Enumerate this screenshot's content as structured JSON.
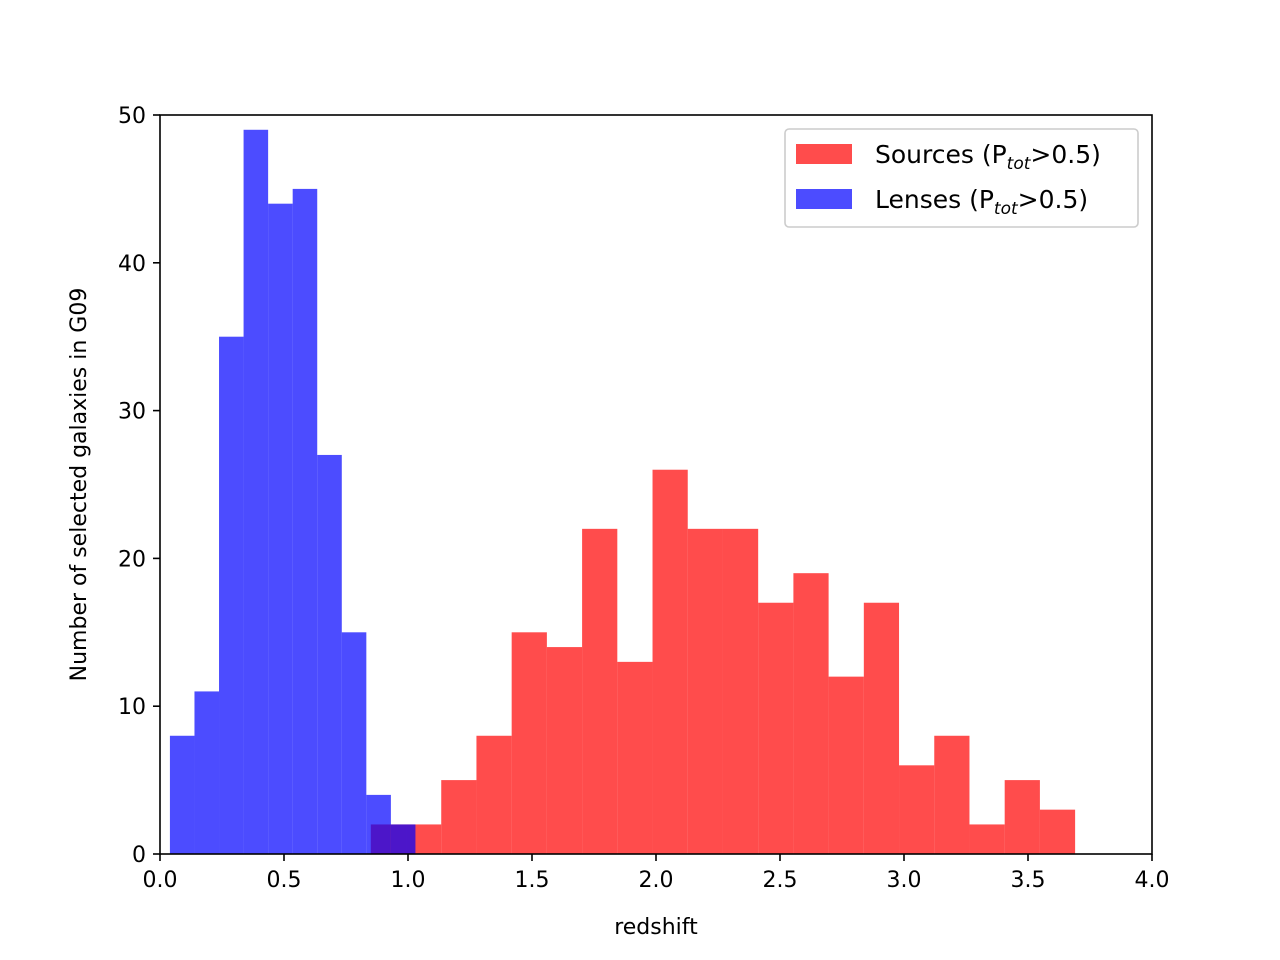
{
  "chart_data": {
    "type": "bar",
    "xlabel": "redshift",
    "ylabel": "Number of selected galaxies in G09",
    "xlim": [
      0.0,
      4.0
    ],
    "ylim": [
      0,
      50
    ],
    "xticks": [
      "0.0",
      "0.5",
      "1.0",
      "1.5",
      "2.0",
      "2.5",
      "3.0",
      "3.5",
      "4.0"
    ],
    "yticks": [
      "0",
      "10",
      "20",
      "30",
      "40",
      "50"
    ],
    "grid": false,
    "legend_position": "top-right",
    "series": [
      {
        "name": "Sources",
        "legend_label_main": "Sources (P",
        "legend_label_sub": "tot",
        "legend_label_tail": ">0.5)",
        "color": "#ff0000",
        "opacity": 0.7,
        "bin_edges": [
          0.85,
          0.992,
          1.134,
          1.276,
          1.418,
          1.56,
          1.702,
          1.844,
          1.986,
          2.128,
          2.27,
          2.412,
          2.554,
          2.696,
          2.838,
          2.98,
          3.122,
          3.264,
          3.406,
          3.548,
          3.69
        ],
        "counts": [
          2,
          2,
          5,
          8,
          15,
          14,
          22,
          13,
          26,
          22,
          22,
          17,
          19,
          12,
          17,
          6,
          8,
          2,
          5,
          3
        ]
      },
      {
        "name": "Lenses",
        "legend_label_main": "Lenses (P",
        "legend_label_sub": "tot",
        "legend_label_tail": ">0.5)",
        "color": "#0000ff",
        "opacity": 0.7,
        "bin_edges": [
          0.04,
          0.139,
          0.238,
          0.337,
          0.436,
          0.535,
          0.634,
          0.733,
          0.832,
          0.931,
          1.03
        ],
        "counts": [
          8,
          11,
          35,
          49,
          44,
          45,
          27,
          15,
          4,
          2
        ]
      }
    ]
  }
}
